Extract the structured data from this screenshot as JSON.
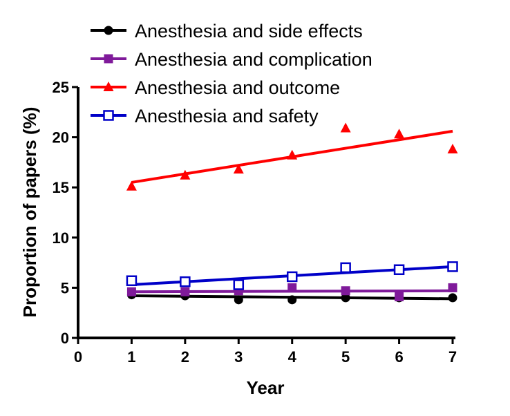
{
  "chart_data": {
    "type": "scatter",
    "title": "",
    "xlabel": "Year",
    "ylabel": "Proportion of papers (%)",
    "xlim": [
      0,
      7
    ],
    "ylim": [
      0,
      25
    ],
    "xticks": [
      "0",
      "1",
      "2",
      "3",
      "4",
      "5",
      "6",
      "7"
    ],
    "yticks": [
      "0",
      "5",
      "10",
      "15",
      "20",
      "25"
    ],
    "grid": false,
    "legend_position": "top",
    "x": [
      1,
      2,
      3,
      4,
      5,
      6,
      7
    ],
    "series": [
      {
        "name": "Anesthesia and side effects",
        "color": "#000000",
        "marker": "circle",
        "values": [
          4.3,
          4.2,
          3.8,
          3.8,
          4.0,
          4.0,
          4.0
        ],
        "trend": [
          4.2,
          3.9
        ]
      },
      {
        "name": "Anesthesia and complication",
        "color": "#7f1a9a",
        "marker": "square",
        "values": [
          4.6,
          4.6,
          4.7,
          5.0,
          4.7,
          4.1,
          5.0
        ],
        "trend": [
          4.6,
          4.7
        ]
      },
      {
        "name": "Anesthesia and outcome",
        "color": "#ff0000",
        "marker": "triangle",
        "values": [
          15.1,
          16.2,
          16.8,
          18.2,
          20.9,
          20.3,
          18.8
        ],
        "trend": [
          15.5,
          20.6
        ]
      },
      {
        "name": "Anesthesia and safety",
        "color": "#0000c8",
        "marker": "open-square",
        "values": [
          5.7,
          5.6,
          5.3,
          6.1,
          7.0,
          6.8,
          7.1
        ],
        "trend": [
          5.3,
          7.1
        ]
      }
    ]
  }
}
